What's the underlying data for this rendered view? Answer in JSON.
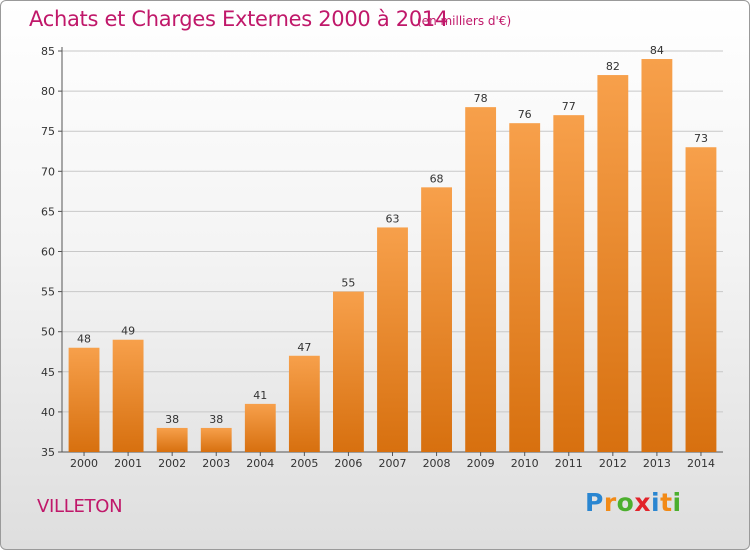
{
  "chart_data": {
    "type": "bar",
    "title": "Achats et Charges Externes 2000 à 2014",
    "subtitle": "(en milliers d'€)",
    "categories": [
      "2000",
      "2001",
      "2002",
      "2003",
      "2004",
      "2005",
      "2006",
      "2007",
      "2008",
      "2009",
      "2010",
      "2011",
      "2012",
      "2013",
      "2014"
    ],
    "values": [
      48,
      49,
      38,
      38,
      41,
      47,
      55,
      63,
      68,
      78,
      76,
      77,
      82,
      84,
      73
    ],
    "xlabel": "",
    "ylabel": "",
    "ylim": [
      35,
      85
    ],
    "yticks": [
      35,
      40,
      45,
      50,
      55,
      60,
      65,
      70,
      75,
      80,
      85
    ],
    "grid": "horizontal",
    "legend": "none",
    "bar_color_top": "#f7a04b",
    "bar_color_bottom": "#d7700f"
  },
  "footer": {
    "commune": "VILLETON"
  },
  "logo": {
    "text": "Proxiti",
    "letters": [
      "P",
      "r",
      "o",
      "x",
      "i",
      "t",
      "i"
    ],
    "colors": [
      "#2a86d1",
      "#f28a16",
      "#4caf2e",
      "#e2232a",
      "#2a86d1",
      "#f28a16",
      "#4caf2e"
    ]
  }
}
